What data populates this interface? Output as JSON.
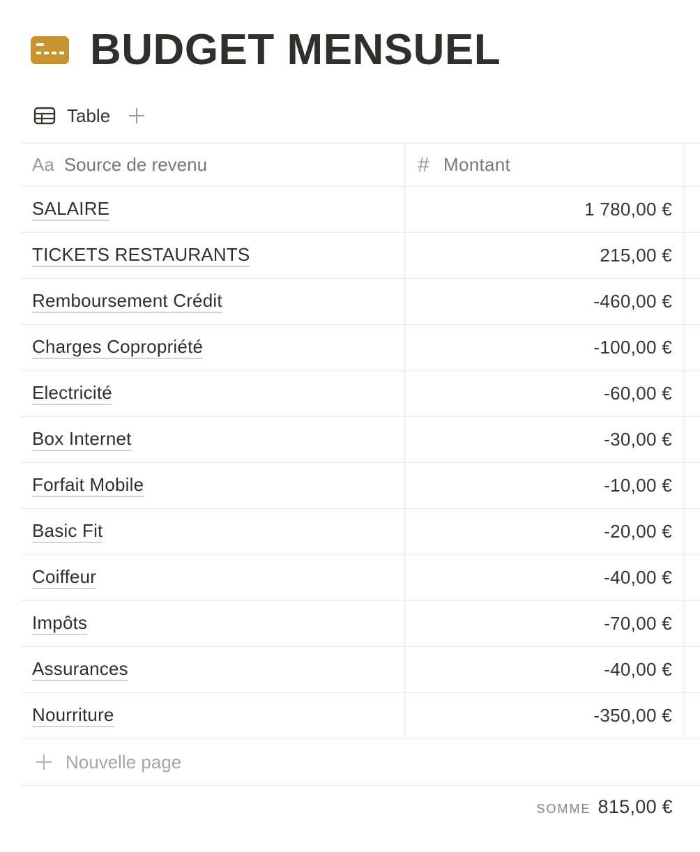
{
  "page": {
    "title": "BUDGET MENSUEL",
    "icon": "credit-card-icon",
    "icon_color": "#c8922f"
  },
  "views": {
    "active_tab_label": "Table",
    "tab_icon": "table-icon",
    "add_icon": "plus-icon"
  },
  "table": {
    "columns": [
      {
        "type_icon_text": "Aa",
        "label": "Source de revenu"
      },
      {
        "type_icon_text": "#",
        "label": "Montant"
      }
    ],
    "rows": [
      {
        "name": "SALAIRE",
        "amount": "1 780,00 €"
      },
      {
        "name": "TICKETS RESTAURANTS",
        "amount": "215,00 €"
      },
      {
        "name": "Remboursement Crédit",
        "amount": "-460,00 €"
      },
      {
        "name": "Charges Copropriété",
        "amount": "-100,00 €"
      },
      {
        "name": "Electricité",
        "amount": "-60,00 €"
      },
      {
        "name": "Box Internet",
        "amount": "-30,00 €"
      },
      {
        "name": "Forfait Mobile",
        "amount": "-10,00 €"
      },
      {
        "name": "Basic Fit",
        "amount": "-20,00 €"
      },
      {
        "name": "Coiffeur",
        "amount": "-40,00 €"
      },
      {
        "name": "Impôts",
        "amount": "-70,00 €"
      },
      {
        "name": "Assurances",
        "amount": "-40,00 €"
      },
      {
        "name": "Nourriture",
        "amount": "-350,00 €"
      }
    ],
    "new_page_label": "Nouvelle page",
    "sum_label": "SOMME",
    "sum_value": "815,00 €"
  }
}
